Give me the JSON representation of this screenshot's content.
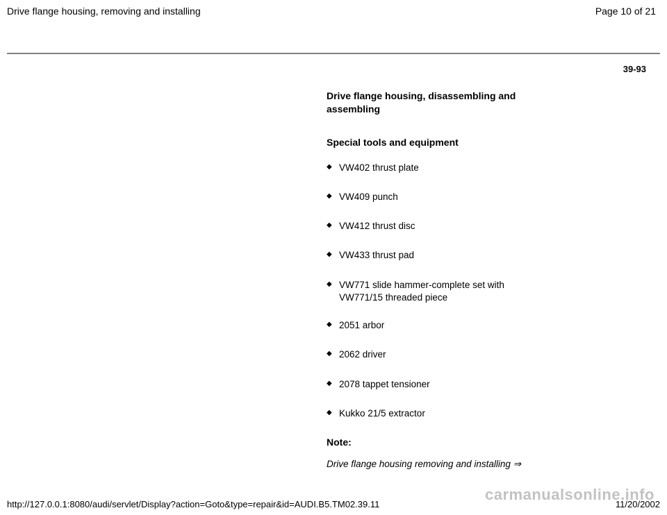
{
  "header": {
    "title": "Drive flange housing, removing and installing",
    "page_indicator": "Page 10 of 21"
  },
  "page_ref": "39-93",
  "content": {
    "heading": "Drive flange housing, disassembling and assembling",
    "sub_heading": "Special tools and equipment",
    "tools": [
      "VW402 thrust plate",
      "VW409 punch",
      "VW412 thrust disc",
      "VW433 thrust pad",
      "VW771 slide hammer-complete set with VW771/15 threaded piece",
      "2051 arbor",
      "2062 driver",
      "2078 tappet tensioner",
      "Kukko 21/5 extractor"
    ],
    "note_label": "Note:",
    "note_text": "Drive flange housing removing and installing  ⇒"
  },
  "footer": {
    "url": "http://127.0.0.1:8080/audi/servlet/Display?action=Goto&type=repair&id=AUDI.B5.TM02.39.11",
    "date": "11/20/2002"
  },
  "watermark": "carmanualsonline.info"
}
